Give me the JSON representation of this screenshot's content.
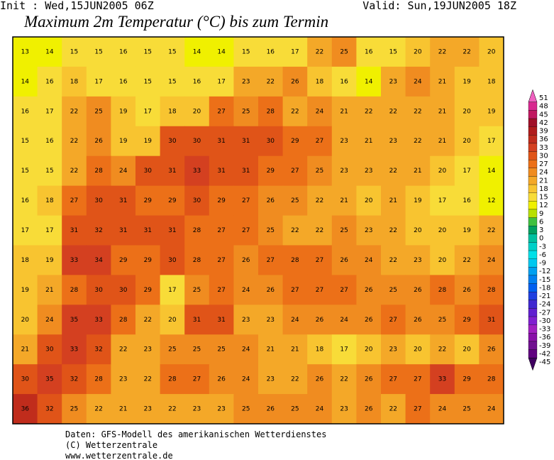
{
  "header": {
    "init": "Init : Wed,15JUN2005 06Z",
    "valid": "Valid: Sun,19JUN2005 18Z",
    "title": "Maximum 2m Temperatur (°C) bis zum Termin"
  },
  "map": {
    "rows": [
      [
        13,
        14,
        15,
        15,
        16,
        15,
        15,
        14,
        14,
        15,
        16,
        17,
        22,
        25,
        16,
        15,
        20,
        22,
        22,
        20
      ],
      [
        14,
        16,
        18,
        17,
        16,
        15,
        15,
        16,
        17,
        23,
        22,
        26,
        18,
        16,
        14,
        23,
        24,
        21,
        19,
        18
      ],
      [
        16,
        17,
        22,
        25,
        19,
        17,
        18,
        20,
        27,
        25,
        28,
        22,
        24,
        21,
        22,
        22,
        22,
        21,
        20,
        19
      ],
      [
        15,
        16,
        22,
        26,
        19,
        19,
        30,
        30,
        31,
        31,
        30,
        29,
        27,
        23,
        21,
        23,
        22,
        21,
        20,
        17
      ],
      [
        15,
        15,
        22,
        28,
        24,
        30,
        31,
        33,
        31,
        31,
        29,
        27,
        25,
        23,
        23,
        22,
        21,
        20,
        17,
        14
      ],
      [
        16,
        18,
        27,
        30,
        31,
        29,
        29,
        30,
        29,
        27,
        26,
        25,
        22,
        21,
        20,
        21,
        19,
        17,
        16,
        12
      ],
      [
        17,
        17,
        31,
        32,
        31,
        31,
        31,
        28,
        27,
        27,
        25,
        22,
        22,
        25,
        23,
        22,
        20,
        20,
        19,
        22
      ],
      [
        18,
        19,
        33,
        34,
        29,
        29,
        30,
        28,
        27,
        26,
        27,
        28,
        27,
        26,
        24,
        22,
        23,
        20,
        22,
        24
      ],
      [
        19,
        21,
        28,
        30,
        30,
        29,
        17,
        25,
        27,
        24,
        26,
        27,
        27,
        27,
        26,
        25,
        26,
        28,
        26,
        28
      ],
      [
        20,
        24,
        35,
        33,
        28,
        22,
        20,
        31,
        31,
        23,
        23,
        24,
        26,
        24,
        26,
        27,
        26,
        25,
        29,
        31
      ],
      [
        21,
        30,
        33,
        32,
        22,
        23,
        25,
        25,
        25,
        24,
        21,
        21,
        18,
        17,
        20,
        23,
        20,
        22,
        20,
        26
      ],
      [
        30,
        35,
        32,
        28,
        23,
        22,
        28,
        27,
        26,
        24,
        23,
        22,
        26,
        22,
        26,
        27,
        27,
        33,
        29,
        28
      ],
      [
        36,
        32,
        25,
        22,
        21,
        23,
        22,
        23,
        23,
        25,
        26,
        25,
        24,
        23,
        26,
        22,
        27,
        24,
        25,
        24
      ]
    ]
  },
  "legend": [
    {
      "value": 51,
      "color": "#f060c0"
    },
    {
      "value": 48,
      "color": "#d82890"
    },
    {
      "value": 45,
      "color": "#c01860"
    },
    {
      "value": 42,
      "color": "#a01028"
    },
    {
      "value": 39,
      "color": "#b01c1c"
    },
    {
      "value": 36,
      "color": "#c02c1c"
    },
    {
      "value": 33,
      "color": "#d44020"
    },
    {
      "value": 30,
      "color": "#e05418"
    },
    {
      "value": 27,
      "color": "#ec7018"
    },
    {
      "value": 24,
      "color": "#f08c20"
    },
    {
      "value": 21,
      "color": "#f4a828"
    },
    {
      "value": 18,
      "color": "#f8c430"
    },
    {
      "value": 15,
      "color": "#f8dc38"
    },
    {
      "value": 12,
      "color": "#f0f000"
    },
    {
      "value": 9,
      "color": "#b8e000"
    },
    {
      "value": 6,
      "color": "#40c040"
    },
    {
      "value": 3,
      "color": "#00a060"
    },
    {
      "value": 0,
      "color": "#00c0a0"
    },
    {
      "value": -3,
      "color": "#00d0c8"
    },
    {
      "value": -6,
      "color": "#00e0e8"
    },
    {
      "value": -9,
      "color": "#00c8f0"
    },
    {
      "value": -12,
      "color": "#00a0f0"
    },
    {
      "value": -15,
      "color": "#0080f0"
    },
    {
      "value": -18,
      "color": "#0060f0"
    },
    {
      "value": -21,
      "color": "#2040e0"
    },
    {
      "value": -24,
      "color": "#4028d0"
    },
    {
      "value": -27,
      "color": "#6020d0"
    },
    {
      "value": -30,
      "color": "#8020d0"
    },
    {
      "value": -33,
      "color": "#a020c0"
    },
    {
      "value": -36,
      "color": "#8810a8"
    },
    {
      "value": -39,
      "color": "#701090"
    },
    {
      "value": -42,
      "color": "#600080"
    },
    {
      "value": -45,
      "color": "#400060"
    }
  ],
  "footer": {
    "line1": "Daten: GFS-Modell des amerikanischen Wetterdienstes",
    "line2": "(C) Wetterzentrale",
    "line3": "www.wetterzentrale.de"
  }
}
